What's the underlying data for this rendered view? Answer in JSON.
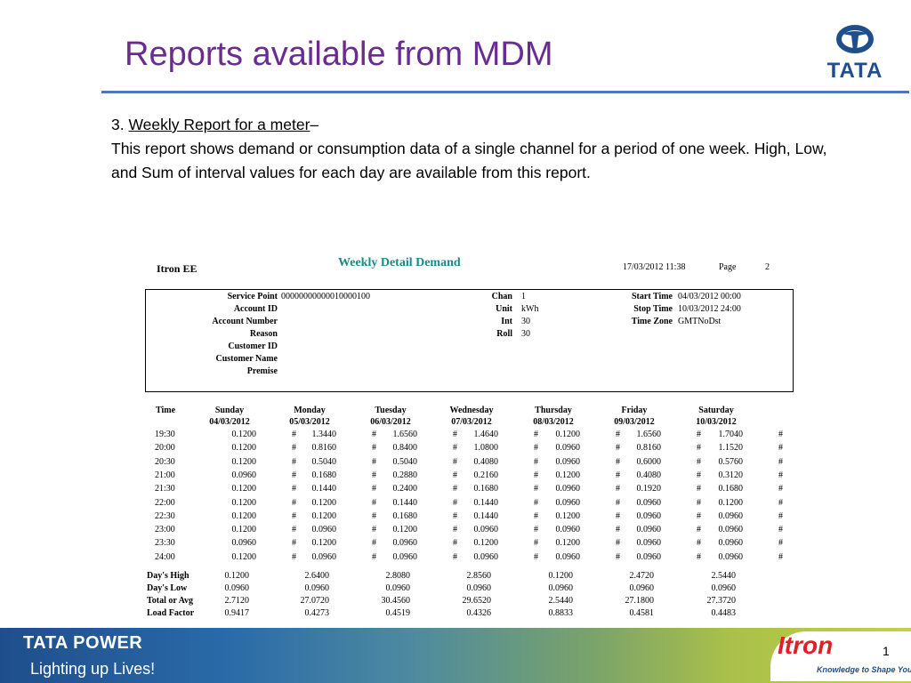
{
  "slide": {
    "title": "Reports available from MDM",
    "logo_text": "TATA",
    "section_number": "3.",
    "section_title": "Weekly Report for a meter",
    "section_dash": "–",
    "description": "This report shows demand or consumption data of a single channel for a period of one week. High, Low, and Sum of interval values for each day are available from this report.",
    "page_number": "1"
  },
  "report": {
    "company": "Itron EE",
    "title": "Weekly Detail Demand",
    "datetime": "17/03/2012 11:38",
    "page_label": "Page",
    "page": "2",
    "info": [
      {
        "label": "Service Point",
        "value": "00000000000010000100"
      },
      {
        "label": "Account ID",
        "value": ""
      },
      {
        "label": "Account Number",
        "value": ""
      },
      {
        "label": "Reason",
        "value": ""
      },
      {
        "label": "Customer ID",
        "value": ""
      },
      {
        "label": "Customer Name",
        "value": ""
      },
      {
        "label": "Premise",
        "value": ""
      }
    ],
    "channel": [
      {
        "label": "Chan",
        "value": "1"
      },
      {
        "label": "Unit",
        "value": "kWh"
      },
      {
        "label": "Int",
        "value": "30"
      },
      {
        "label": "Roll",
        "value": "30"
      }
    ],
    "time_info": [
      {
        "label": "Start Time",
        "value": "04/03/2012 00:00"
      },
      {
        "label": "Stop Time",
        "value": "10/03/2012 24:00"
      },
      {
        "label": "Time Zone",
        "value": "GMTNoDst"
      }
    ],
    "time_header": "Time",
    "days": [
      {
        "name": "Sunday",
        "date": "04/03/2012"
      },
      {
        "name": "Monday",
        "date": "05/03/2012"
      },
      {
        "name": "Tuesday",
        "date": "06/03/2012"
      },
      {
        "name": "Wednesday",
        "date": "07/03/2012"
      },
      {
        "name": "Thursday",
        "date": "08/03/2012"
      },
      {
        "name": "Friday",
        "date": "09/03/2012"
      },
      {
        "name": "Saturday",
        "date": "10/03/2012"
      }
    ],
    "flag": "#",
    "rows": [
      {
        "time": "19:30",
        "values": [
          "0.1200",
          "1.3440",
          "1.6560",
          "1.4640",
          "0.1200",
          "1.6560",
          "1.7040"
        ]
      },
      {
        "time": "20:00",
        "values": [
          "0.1200",
          "0.8160",
          "0.8400",
          "1.0800",
          "0.0960",
          "0.8160",
          "1.1520"
        ]
      },
      {
        "time": "20:30",
        "values": [
          "0.1200",
          "0.5040",
          "0.5040",
          "0.4080",
          "0.0960",
          "0.6000",
          "0.5760"
        ]
      },
      {
        "time": "21:00",
        "values": [
          "0.0960",
          "0.1680",
          "0.2880",
          "0.2160",
          "0.1200",
          "0.4080",
          "0.3120"
        ]
      },
      {
        "time": "21:30",
        "values": [
          "0.1200",
          "0.1440",
          "0.2400",
          "0.1680",
          "0.0960",
          "0.1920",
          "0.1680"
        ]
      },
      {
        "time": "22:00",
        "values": [
          "0.1200",
          "0.1200",
          "0.1440",
          "0.1440",
          "0.0960",
          "0.0960",
          "0.1200"
        ]
      },
      {
        "time": "22:30",
        "values": [
          "0.1200",
          "0.1200",
          "0.1680",
          "0.1440",
          "0.1200",
          "0.0960",
          "0.0960"
        ]
      },
      {
        "time": "23:00",
        "values": [
          "0.1200",
          "0.0960",
          "0.1200",
          "0.0960",
          "0.0960",
          "0.0960",
          "0.0960"
        ]
      },
      {
        "time": "23:30",
        "values": [
          "0.0960",
          "0.1200",
          "0.0960",
          "0.1200",
          "0.1200",
          "0.0960",
          "0.0960"
        ]
      },
      {
        "time": "24:00",
        "values": [
          "0.1200",
          "0.0960",
          "0.0960",
          "0.0960",
          "0.0960",
          "0.0960",
          "0.0960"
        ]
      }
    ],
    "summary": [
      {
        "label": "Day's High",
        "values": [
          "0.1200",
          "2.6400",
          "2.8080",
          "2.8560",
          "0.1200",
          "2.4720",
          "2.5440"
        ]
      },
      {
        "label": "Day's Low",
        "values": [
          "0.0960",
          "0.0960",
          "0.0960",
          "0.0960",
          "0.0960",
          "0.0960",
          "0.0960"
        ]
      },
      {
        "label": "Total or Avg",
        "values": [
          "2.7120",
          "27.0720",
          "30.4560",
          "29.6520",
          "2.5440",
          "27.1800",
          "27.3720"
        ]
      },
      {
        "label": "Load Factor",
        "values": [
          "0.9417",
          "0.4273",
          "0.4519",
          "0.4326",
          "0.8833",
          "0.4581",
          "0.4483"
        ]
      }
    ]
  },
  "footer": {
    "brand": "TATA POWER",
    "tagline": "Lighting up Lives!",
    "partner": "Itron",
    "partner_tagline": "Knowledge to Shape Your Future"
  },
  "colors": {
    "title": "#6a2c91",
    "rule": "#4a78b8",
    "report_title": "#1b8a8a",
    "brand_blue": "#1f4e8c",
    "itron_red": "#e31e24"
  }
}
